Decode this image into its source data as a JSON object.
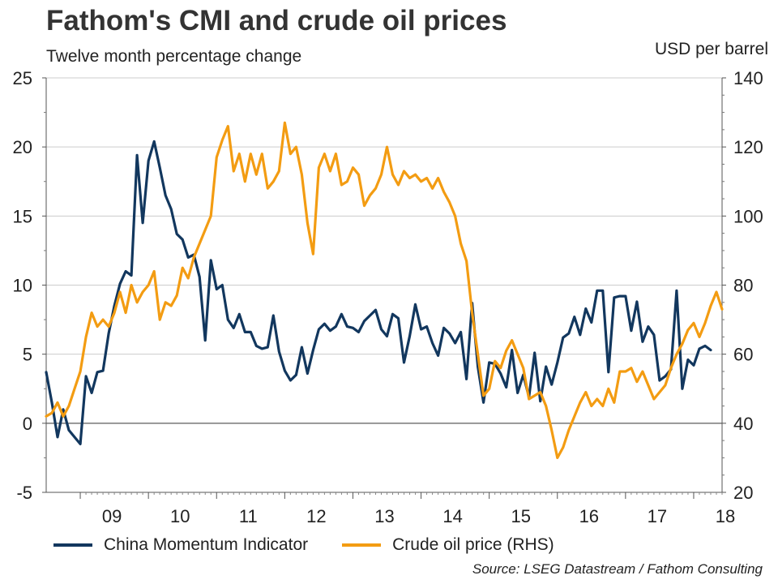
{
  "header": {
    "title": "Fathom's CMI and crude oil prices",
    "subtitle": "Twelve month percentage change",
    "right_axis_unit": "USD per barrel"
  },
  "footer": {
    "source": "Source: LSEG Datastream / Fathom Consulting"
  },
  "chart_data": {
    "type": "line",
    "title": "Fathom's CMI and crude oil prices",
    "subtitle": "Twelve month percentage change",
    "x_ticks": [
      "09",
      "10",
      "11",
      "12",
      "13",
      "14",
      "15",
      "16",
      "17",
      "18"
    ],
    "xlim": [
      "2008-07",
      "2018-06"
    ],
    "y_left": {
      "label": "Twelve month percentage change",
      "ticks": [
        25,
        20,
        15,
        10,
        5,
        0,
        -5
      ],
      "ylim": [
        -5,
        25
      ]
    },
    "y_right": {
      "label": "USD per barrel",
      "ticks": [
        140,
        120,
        100,
        80,
        60,
        40,
        20
      ],
      "ylim": [
        20,
        140
      ]
    },
    "grid": true,
    "legend_position": "bottom",
    "series": [
      {
        "name": "China Momentum Indicator",
        "axis": "left",
        "color": "#12375e",
        "points": [
          [
            "2008-07",
            3.7
          ],
          [
            "2008-08",
            1.5
          ],
          [
            "2008-09",
            -1.0
          ],
          [
            "2008-10",
            1.0
          ],
          [
            "2008-11",
            -0.5
          ],
          [
            "2008-12",
            -1.0
          ],
          [
            "2009-01",
            -1.5
          ],
          [
            "2009-02",
            3.4
          ],
          [
            "2009-03",
            2.2
          ],
          [
            "2009-04",
            3.7
          ],
          [
            "2009-05",
            3.8
          ],
          [
            "2009-06",
            6.5
          ],
          [
            "2009-07",
            8.5
          ],
          [
            "2009-08",
            10.1
          ],
          [
            "2009-09",
            11.0
          ],
          [
            "2009-10",
            10.7
          ],
          [
            "2009-11",
            19.4
          ],
          [
            "2009-12",
            14.5
          ],
          [
            "2010-01",
            19.0
          ],
          [
            "2010-02",
            20.4
          ],
          [
            "2010-03",
            18.5
          ],
          [
            "2010-04",
            16.5
          ],
          [
            "2010-05",
            15.5
          ],
          [
            "2010-06",
            13.7
          ],
          [
            "2010-07",
            13.3
          ],
          [
            "2010-08",
            12.0
          ],
          [
            "2010-09",
            12.2
          ],
          [
            "2010-10",
            10.6
          ],
          [
            "2010-11",
            6.0
          ],
          [
            "2010-12",
            11.8
          ],
          [
            "2011-01",
            9.7
          ],
          [
            "2011-02",
            10.0
          ],
          [
            "2011-03",
            7.5
          ],
          [
            "2011-04",
            6.9
          ],
          [
            "2011-05",
            7.9
          ],
          [
            "2011-06",
            6.6
          ],
          [
            "2011-07",
            6.6
          ],
          [
            "2011-08",
            5.6
          ],
          [
            "2011-09",
            5.4
          ],
          [
            "2011-10",
            5.5
          ],
          [
            "2011-11",
            7.8
          ],
          [
            "2011-12",
            5.2
          ],
          [
            "2012-01",
            3.8
          ],
          [
            "2012-02",
            3.1
          ],
          [
            "2012-03",
            3.5
          ],
          [
            "2012-04",
            5.5
          ],
          [
            "2012-05",
            3.6
          ],
          [
            "2012-06",
            5.3
          ],
          [
            "2012-07",
            6.8
          ],
          [
            "2012-08",
            7.2
          ],
          [
            "2012-09",
            6.7
          ],
          [
            "2012-10",
            7.0
          ],
          [
            "2012-11",
            7.9
          ],
          [
            "2012-12",
            7.0
          ],
          [
            "2013-01",
            6.9
          ],
          [
            "2013-02",
            6.6
          ],
          [
            "2013-03",
            7.4
          ],
          [
            "2013-04",
            7.8
          ],
          [
            "2013-05",
            8.2
          ],
          [
            "2013-06",
            6.8
          ],
          [
            "2013-07",
            6.3
          ],
          [
            "2013-08",
            7.9
          ],
          [
            "2013-09",
            7.6
          ],
          [
            "2013-10",
            4.4
          ],
          [
            "2013-11",
            6.3
          ],
          [
            "2013-12",
            8.6
          ],
          [
            "2014-01",
            6.8
          ],
          [
            "2014-02",
            7.0
          ],
          [
            "2014-03",
            5.8
          ],
          [
            "2014-04",
            4.9
          ],
          [
            "2014-05",
            6.9
          ],
          [
            "2014-06",
            6.5
          ],
          [
            "2014-07",
            5.8
          ],
          [
            "2014-08",
            6.6
          ],
          [
            "2014-09",
            3.2
          ],
          [
            "2014-10",
            8.7
          ],
          [
            "2014-11",
            4.1
          ],
          [
            "2014-12",
            1.5
          ],
          [
            "2015-01",
            4.4
          ],
          [
            "2015-02",
            4.3
          ],
          [
            "2015-03",
            3.6
          ],
          [
            "2015-04",
            2.6
          ],
          [
            "2015-05",
            5.3
          ],
          [
            "2015-06",
            2.2
          ],
          [
            "2015-07",
            3.5
          ],
          [
            "2015-08",
            1.9
          ],
          [
            "2015-09",
            5.1
          ],
          [
            "2015-10",
            1.6
          ],
          [
            "2015-11",
            4.1
          ],
          [
            "2015-12",
            2.8
          ],
          [
            "2016-01",
            4.4
          ],
          [
            "2016-02",
            6.2
          ],
          [
            "2016-03",
            6.5
          ],
          [
            "2016-04",
            7.7
          ],
          [
            "2016-05",
            6.4
          ],
          [
            "2016-06",
            8.3
          ],
          [
            "2016-07",
            7.3
          ],
          [
            "2016-08",
            9.6
          ],
          [
            "2016-09",
            9.6
          ],
          [
            "2016-10",
            3.7
          ],
          [
            "2016-11",
            9.1
          ],
          [
            "2016-12",
            9.2
          ],
          [
            "2017-01",
            9.2
          ],
          [
            "2017-02",
            6.7
          ],
          [
            "2017-03",
            8.8
          ],
          [
            "2017-04",
            5.9
          ],
          [
            "2017-05",
            7.0
          ],
          [
            "2017-06",
            6.4
          ],
          [
            "2017-07",
            3.1
          ],
          [
            "2017-08",
            3.4
          ],
          [
            "2017-09",
            3.9
          ],
          [
            "2017-10",
            9.6
          ],
          [
            "2017-11",
            2.5
          ],
          [
            "2017-12",
            4.6
          ],
          [
            "2018-01",
            4.2
          ],
          [
            "2018-02",
            5.4
          ],
          [
            "2018-03",
            5.6
          ],
          [
            "2018-04",
            5.3
          ]
        ]
      },
      {
        "name": "Crude oil price (RHS)",
        "axis": "right",
        "color": "#f39c12",
        "points": [
          [
            "2008-07",
            42.0
          ],
          [
            "2008-08",
            43.0
          ],
          [
            "2008-09",
            46.0
          ],
          [
            "2008-10",
            42.0
          ],
          [
            "2008-11",
            45.0
          ],
          [
            "2008-12",
            50.0
          ],
          [
            "2009-01",
            55.0
          ],
          [
            "2009-02",
            65.0
          ],
          [
            "2009-03",
            72.0
          ],
          [
            "2009-04",
            68.0
          ],
          [
            "2009-05",
            70.0
          ],
          [
            "2009-06",
            68.0
          ],
          [
            "2009-07",
            72.0
          ],
          [
            "2009-08",
            78.0
          ],
          [
            "2009-09",
            72.0
          ],
          [
            "2009-10",
            80.0
          ],
          [
            "2009-11",
            75.0
          ],
          [
            "2009-12",
            78.0
          ],
          [
            "2010-01",
            80.0
          ],
          [
            "2010-02",
            84.0
          ],
          [
            "2010-03",
            70.0
          ],
          [
            "2010-04",
            75.0
          ],
          [
            "2010-05",
            74.0
          ],
          [
            "2010-06",
            77.0
          ],
          [
            "2010-07",
            85.0
          ],
          [
            "2010-08",
            82.0
          ],
          [
            "2010-09",
            88.0
          ],
          [
            "2010-10",
            92.0
          ],
          [
            "2010-11",
            96.0
          ],
          [
            "2010-12",
            100.0
          ],
          [
            "2011-01",
            117.0
          ],
          [
            "2011-02",
            122.0
          ],
          [
            "2011-03",
            126.0
          ],
          [
            "2011-04",
            113.0
          ],
          [
            "2011-05",
            118.0
          ],
          [
            "2011-06",
            110.0
          ],
          [
            "2011-07",
            118.0
          ],
          [
            "2011-08",
            112.0
          ],
          [
            "2011-09",
            118.0
          ],
          [
            "2011-10",
            108.0
          ],
          [
            "2011-11",
            110.0
          ],
          [
            "2011-12",
            113.0
          ],
          [
            "2012-01",
            127.0
          ],
          [
            "2012-02",
            118.0
          ],
          [
            "2012-03",
            120.0
          ],
          [
            "2012-04",
            112.0
          ],
          [
            "2012-05",
            98.0
          ],
          [
            "2012-06",
            89.0
          ],
          [
            "2012-07",
            114.0
          ],
          [
            "2012-08",
            118.0
          ],
          [
            "2012-09",
            113.0
          ],
          [
            "2012-10",
            118.0
          ],
          [
            "2012-11",
            109.0
          ],
          [
            "2012-12",
            110.0
          ],
          [
            "2013-01",
            114.0
          ],
          [
            "2013-02",
            112.0
          ],
          [
            "2013-03",
            103.0
          ],
          [
            "2013-04",
            106.0
          ],
          [
            "2013-05",
            108.0
          ],
          [
            "2013-06",
            112.0
          ],
          [
            "2013-07",
            120.0
          ],
          [
            "2013-08",
            112.0
          ],
          [
            "2013-09",
            109.0
          ],
          [
            "2013-10",
            113.0
          ],
          [
            "2013-11",
            111.0
          ],
          [
            "2013-12",
            112.0
          ],
          [
            "2014-01",
            110.0
          ],
          [
            "2014-02",
            111.0
          ],
          [
            "2014-03",
            108.0
          ],
          [
            "2014-04",
            111.0
          ],
          [
            "2014-05",
            107.0
          ],
          [
            "2014-06",
            104.0
          ],
          [
            "2014-07",
            100.0
          ],
          [
            "2014-08",
            92.0
          ],
          [
            "2014-09",
            87.0
          ],
          [
            "2014-10",
            72.0
          ],
          [
            "2014-11",
            60.0
          ],
          [
            "2014-12",
            48.0
          ],
          [
            "2015-01",
            50.0
          ],
          [
            "2015-02",
            58.0
          ],
          [
            "2015-03",
            56.0
          ],
          [
            "2015-04",
            61.0
          ],
          [
            "2015-05",
            64.0
          ],
          [
            "2015-06",
            60.0
          ],
          [
            "2015-07",
            56.0
          ],
          [
            "2015-08",
            47.0
          ],
          [
            "2015-09",
            48.0
          ],
          [
            "2015-10",
            49.0
          ],
          [
            "2015-11",
            45.0
          ],
          [
            "2015-12",
            38.0
          ],
          [
            "2016-01",
            30.0
          ],
          [
            "2016-02",
            33.0
          ],
          [
            "2016-03",
            38.0
          ],
          [
            "2016-04",
            42.0
          ],
          [
            "2016-05",
            46.0
          ],
          [
            "2016-06",
            49.0
          ],
          [
            "2016-07",
            45.0
          ],
          [
            "2016-08",
            47.0
          ],
          [
            "2016-09",
            45.0
          ],
          [
            "2016-10",
            50.0
          ],
          [
            "2016-11",
            46.0
          ],
          [
            "2016-12",
            55.0
          ],
          [
            "2017-01",
            55.0
          ],
          [
            "2017-02",
            56.0
          ],
          [
            "2017-03",
            52.0
          ],
          [
            "2017-04",
            55.0
          ],
          [
            "2017-05",
            51.0
          ],
          [
            "2017-06",
            47.0
          ],
          [
            "2017-07",
            49.0
          ],
          [
            "2017-08",
            51.0
          ],
          [
            "2017-09",
            56.0
          ],
          [
            "2017-10",
            60.0
          ],
          [
            "2017-11",
            63.0
          ],
          [
            "2017-12",
            67.0
          ],
          [
            "2018-01",
            69.0
          ],
          [
            "2018-02",
            65.0
          ],
          [
            "2018-03",
            69.0
          ],
          [
            "2018-04",
            74.0
          ],
          [
            "2018-05",
            78.0
          ],
          [
            "2018-06",
            73.0
          ]
        ]
      }
    ]
  }
}
